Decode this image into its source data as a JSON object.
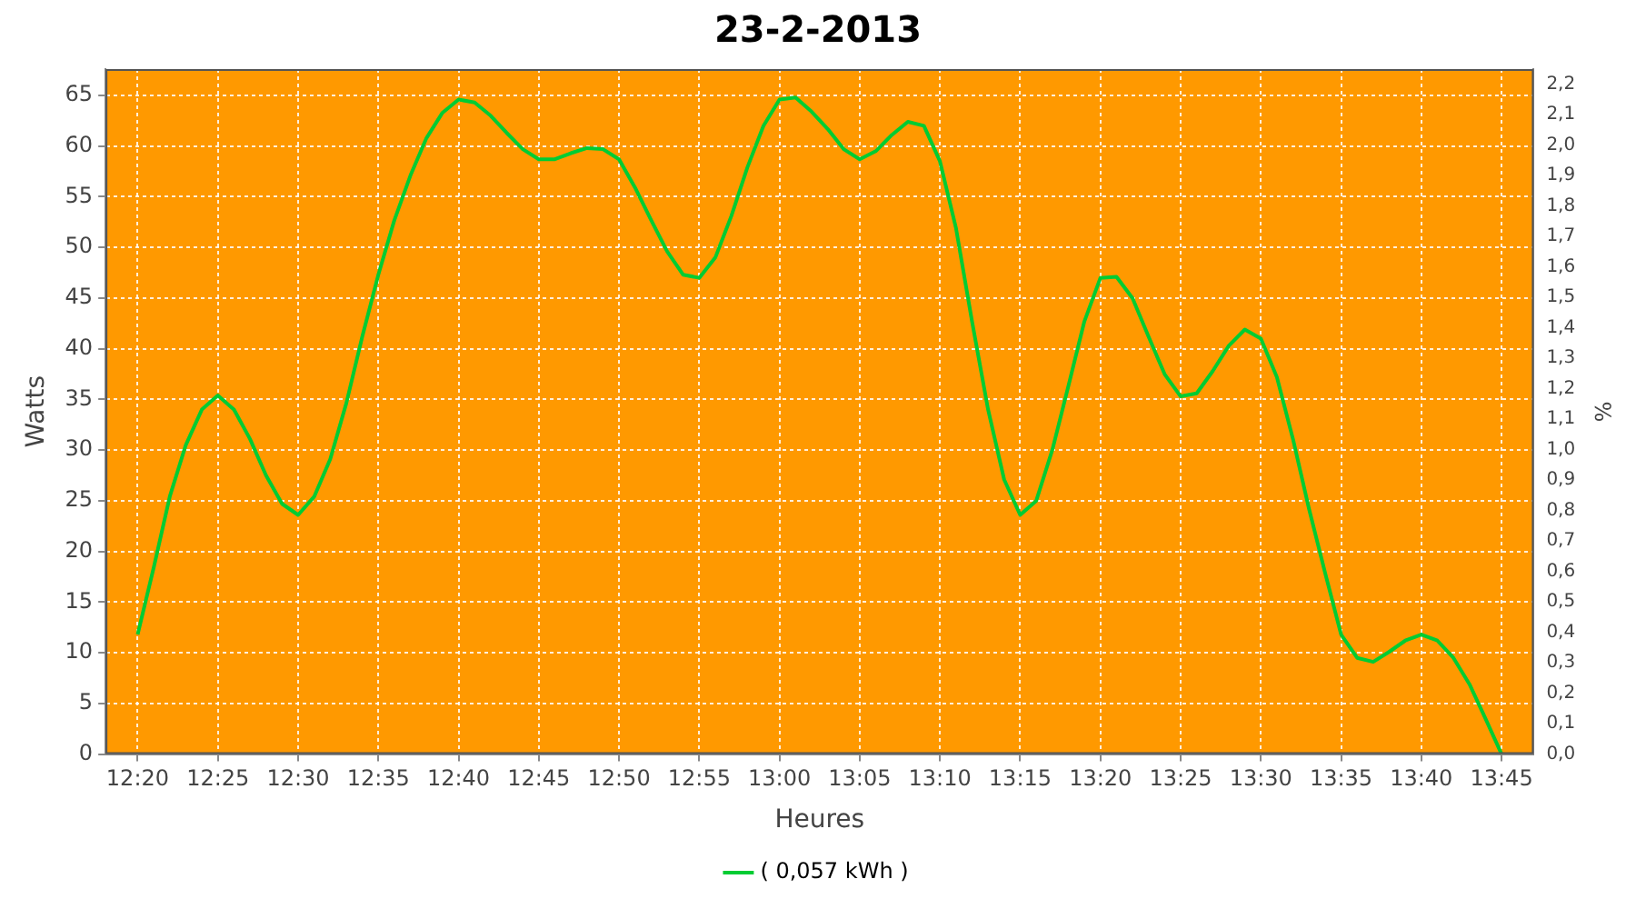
{
  "chart_data": {
    "type": "line",
    "title": "23-2-2013",
    "xlabel": "Heures",
    "ylabel": "Watts",
    "y2label": "%",
    "x": [
      "2013-02-23T12:20",
      "2013-02-23T12:21",
      "2013-02-23T12:22",
      "2013-02-23T12:23",
      "2013-02-23T12:24",
      "2013-02-23T12:25",
      "2013-02-23T12:26",
      "2013-02-23T12:27",
      "2013-02-23T12:28",
      "2013-02-23T12:29",
      "2013-02-23T12:30",
      "2013-02-23T12:31",
      "2013-02-23T12:32",
      "2013-02-23T12:33",
      "2013-02-23T12:34",
      "2013-02-23T12:35",
      "2013-02-23T12:36",
      "2013-02-23T12:37",
      "2013-02-23T12:38",
      "2013-02-23T12:39",
      "2013-02-23T12:40",
      "2013-02-23T12:41",
      "2013-02-23T12:42",
      "2013-02-23T12:43",
      "2013-02-23T12:44",
      "2013-02-23T12:45",
      "2013-02-23T12:46",
      "2013-02-23T12:47",
      "2013-02-23T12:48",
      "2013-02-23T12:49",
      "2013-02-23T12:50",
      "2013-02-23T12:51",
      "2013-02-23T12:52",
      "2013-02-23T12:53",
      "2013-02-23T12:54",
      "2013-02-23T12:55",
      "2013-02-23T12:56",
      "2013-02-23T12:57",
      "2013-02-23T12:58",
      "2013-02-23T12:59",
      "2013-02-23T13:00",
      "2013-02-23T13:01",
      "2013-02-23T13:02",
      "2013-02-23T13:03",
      "2013-02-23T13:04",
      "2013-02-23T13:05",
      "2013-02-23T13:06",
      "2013-02-23T13:07",
      "2013-02-23T13:08",
      "2013-02-23T13:09",
      "2013-02-23T13:10",
      "2013-02-23T13:11",
      "2013-02-23T13:12",
      "2013-02-23T13:13",
      "2013-02-23T13:14",
      "2013-02-23T13:15",
      "2013-02-23T13:16",
      "2013-02-23T13:17",
      "2013-02-23T13:18",
      "2013-02-23T13:19",
      "2013-02-23T13:20",
      "2013-02-23T13:21",
      "2013-02-23T13:22",
      "2013-02-23T13:23",
      "2013-02-23T13:24",
      "2013-02-23T13:25",
      "2013-02-23T13:26",
      "2013-02-23T13:27",
      "2013-02-23T13:28",
      "2013-02-23T13:29",
      "2013-02-23T13:30",
      "2013-02-23T13:31",
      "2013-02-23T13:32",
      "2013-02-23T13:33",
      "2013-02-23T13:34",
      "2013-02-23T13:35",
      "2013-02-23T13:36",
      "2013-02-23T13:37",
      "2013-02-23T13:38",
      "2013-02-23T13:39",
      "2013-02-23T13:40",
      "2013-02-23T13:41",
      "2013-02-23T13:42",
      "2013-02-23T13:43",
      "2013-02-23T13:44",
      "2013-02-23T13:45"
    ],
    "series": [
      {
        "name": "( 0,057 kWh )",
        "color": "#00cc33",
        "values": [
          11.8,
          18.4,
          25.4,
          30.5,
          34.0,
          35.4,
          34.0,
          31.1,
          27.5,
          24.7,
          23.6,
          25.4,
          29.1,
          34.6,
          41.2,
          47.3,
          52.7,
          57.1,
          60.8,
          63.3,
          64.6,
          64.3,
          63.0,
          61.3,
          59.7,
          58.7,
          58.7,
          59.3,
          59.8,
          59.7,
          58.7,
          55.9,
          52.7,
          49.6,
          47.3,
          47.0,
          49.0,
          53.1,
          57.9,
          62.0,
          64.6,
          64.8,
          63.4,
          61.7,
          59.7,
          58.7,
          59.5,
          61.1,
          62.4,
          62.0,
          58.5,
          51.9,
          42.7,
          34.0,
          27.1,
          23.6,
          25.0,
          30.0,
          36.3,
          42.7,
          47.0,
          47.1,
          45.0,
          41.2,
          37.5,
          35.3,
          35.6,
          37.8,
          40.3,
          41.9,
          41.0,
          37.2,
          31.1,
          24.2,
          17.9,
          11.8,
          9.5,
          9.1,
          10.1,
          11.2,
          11.8,
          11.2,
          9.5,
          6.9,
          3.5,
          0
        ]
      }
    ],
    "xlim": [
      "2013-02-23T12:18",
      "2013-02-23T13:47"
    ],
    "xticks": [
      {
        "value": "2013-02-23T12:20",
        "label": "12:20"
      },
      {
        "value": "2013-02-23T12:25",
        "label": "12:25"
      },
      {
        "value": "2013-02-23T12:30",
        "label": "12:30"
      },
      {
        "value": "2013-02-23T12:35",
        "label": "12:35"
      },
      {
        "value": "2013-02-23T12:40",
        "label": "12:40"
      },
      {
        "value": "2013-02-23T12:45",
        "label": "12:45"
      },
      {
        "value": "2013-02-23T12:50",
        "label": "12:50"
      },
      {
        "value": "2013-02-23T12:55",
        "label": "12:55"
      },
      {
        "value": "2013-02-23T13:00",
        "label": "13:00"
      },
      {
        "value": "2013-02-23T13:05",
        "label": "13:05"
      },
      {
        "value": "2013-02-23T13:10",
        "label": "13:10"
      },
      {
        "value": "2013-02-23T13:15",
        "label": "13:15"
      },
      {
        "value": "2013-02-23T13:20",
        "label": "13:20"
      },
      {
        "value": "2013-02-23T13:25",
        "label": "13:25"
      },
      {
        "value": "2013-02-23T13:30",
        "label": "13:30"
      },
      {
        "value": "2013-02-23T13:35",
        "label": "13:35"
      },
      {
        "value": "2013-02-23T13:40",
        "label": "13:40"
      },
      {
        "value": "2013-02-23T13:45",
        "label": "13:45"
      }
    ],
    "ylim": [
      0,
      67.6
    ],
    "yticks": [
      0,
      5,
      10,
      15,
      20,
      25,
      30,
      35,
      40,
      45,
      50,
      55,
      60,
      65
    ],
    "y2lim": [
      0,
      2.25
    ],
    "y2ticks": [
      {
        "value": 0,
        "label": "0,0"
      },
      {
        "value": 0.1,
        "label": "0,1"
      },
      {
        "value": 0.2,
        "label": "0,2"
      },
      {
        "value": 0.3,
        "label": "0,3"
      },
      {
        "value": 0.4,
        "label": "0,4"
      },
      {
        "value": 0.5,
        "label": "0,5"
      },
      {
        "value": 0.6,
        "label": "0,6"
      },
      {
        "value": 0.7,
        "label": "0,7"
      },
      {
        "value": 0.8,
        "label": "0,8"
      },
      {
        "value": 0.9,
        "label": "0,9"
      },
      {
        "value": 1.0,
        "label": "1,0"
      },
      {
        "value": 1.1,
        "label": "1,1"
      },
      {
        "value": 1.2,
        "label": "1,2"
      },
      {
        "value": 1.3,
        "label": "1,3"
      },
      {
        "value": 1.4,
        "label": "1,4"
      },
      {
        "value": 1.5,
        "label": "1,5"
      },
      {
        "value": 1.6,
        "label": "1,6"
      },
      {
        "value": 1.7,
        "label": "1,7"
      },
      {
        "value": 1.8,
        "label": "1,8"
      },
      {
        "value": 1.9,
        "label": "1,9"
      },
      {
        "value": 2.0,
        "label": "2,0"
      },
      {
        "value": 2.1,
        "label": "2,1"
      },
      {
        "value": 2.2,
        "label": "2,2"
      }
    ],
    "grid": true,
    "legend": "bottom",
    "marker": "none",
    "line_style": "solid"
  }
}
